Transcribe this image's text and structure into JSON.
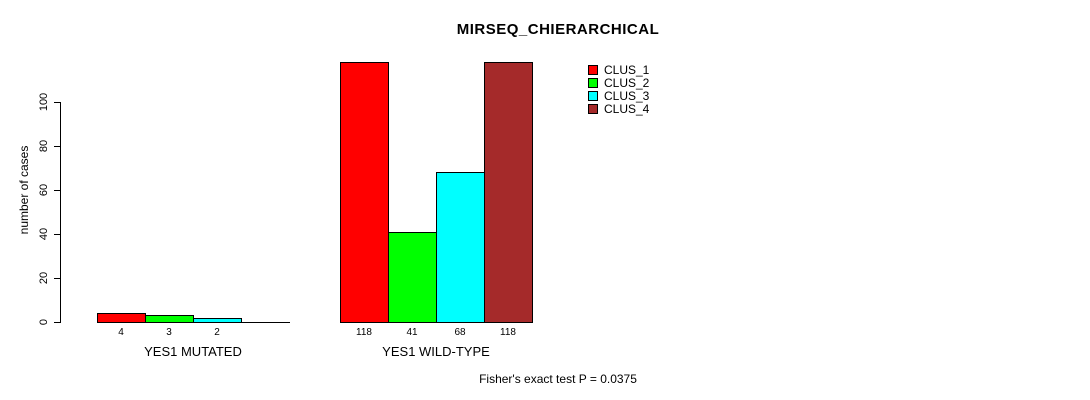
{
  "chart_data": {
    "type": "bar",
    "title": "MIRSEQ_CHIERARCHICAL",
    "ylabel": "number of cases",
    "xlabel": "",
    "ylim": [
      0,
      100
    ],
    "yticks": [
      0,
      20,
      40,
      60,
      80,
      100
    ],
    "grid": false,
    "legend_position": "top-right-inside",
    "background_color": "#ffffff",
    "axis_color": "#000000",
    "categories": [
      "YES1 MUTATED",
      "YES1 WILD-TYPE"
    ],
    "series": [
      {
        "name": "CLUS_1",
        "color": "#ff0000",
        "values": [
          4,
          118
        ]
      },
      {
        "name": "CLUS_2",
        "color": "#00ff00",
        "values": [
          3,
          41
        ]
      },
      {
        "name": "CLUS_3",
        "color": "#00ffff",
        "values": [
          2,
          68
        ]
      },
      {
        "name": "CLUS_4",
        "color": "#a52a2a",
        "values": [
          0,
          118
        ]
      }
    ],
    "bar_value_labels": [
      [
        "4",
        "3",
        "2",
        ""
      ],
      [
        "118",
        "41",
        "68",
        "118"
      ]
    ],
    "footer": "Fisher's exact test P = 0.0375"
  }
}
